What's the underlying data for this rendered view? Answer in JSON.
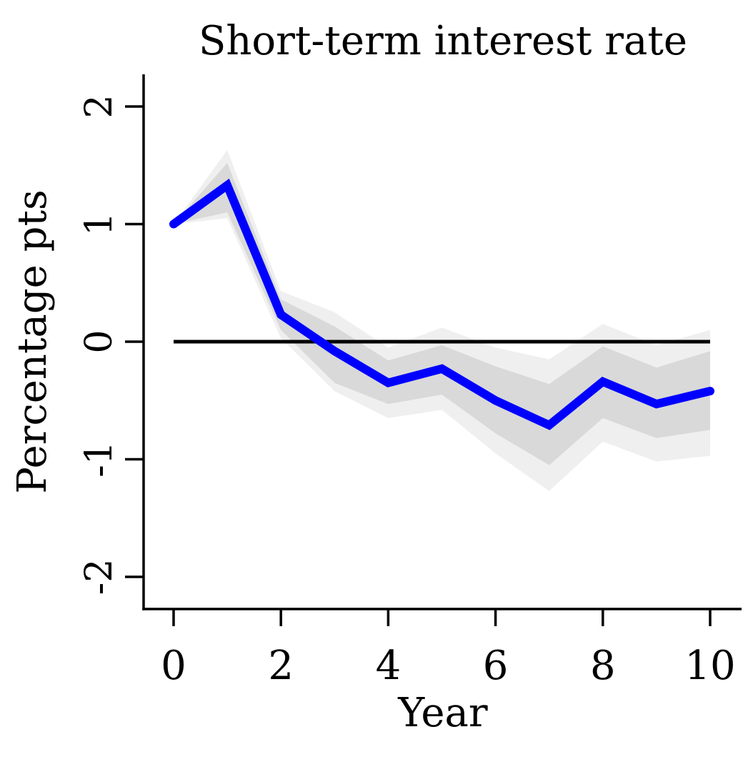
{
  "chart_data": {
    "type": "line",
    "title": "Short-term interest rate",
    "xlabel": "Year",
    "ylabel": "Percentage pts",
    "xlim": [
      -0.55,
      10.55
    ],
    "ylim": [
      -2.22,
      2.27
    ],
    "x_ticks": [
      0,
      2,
      4,
      6,
      8,
      10
    ],
    "x_tick_labels": [
      "0",
      "2",
      "4",
      "6",
      "8",
      "10"
    ],
    "y_ticks": [
      -2,
      -1,
      0,
      1,
      2
    ],
    "y_tick_labels": [
      "-2",
      "-1",
      "0",
      "1",
      "2"
    ],
    "grid": false,
    "x": [
      0,
      1,
      2,
      3,
      4,
      5,
      6,
      7,
      8,
      9,
      10
    ],
    "series": [
      {
        "values": [
          1.0,
          1.33,
          0.23,
          -0.08,
          -0.35,
          -0.23,
          -0.5,
          -0.71,
          -0.34,
          -0.53,
          -0.42
        ],
        "color": "#0000ff"
      }
    ],
    "bands": [
      {
        "level": "outer",
        "color": "#efefef",
        "lower": [
          1.0,
          1.05,
          0.03,
          -0.42,
          -0.65,
          -0.58,
          -0.95,
          -1.27,
          -0.85,
          -1.02,
          -0.97
        ],
        "upper": [
          1.0,
          1.63,
          0.43,
          0.25,
          -0.05,
          0.12,
          -0.05,
          -0.15,
          0.15,
          -0.03,
          0.1
        ]
      },
      {
        "level": "inner",
        "color": "#d9d9d9",
        "lower": [
          1.0,
          1.1,
          0.1,
          -0.35,
          -0.53,
          -0.45,
          -0.78,
          -1.05,
          -0.65,
          -0.82,
          -0.75
        ],
        "upper": [
          1.0,
          1.52,
          0.36,
          0.13,
          -0.16,
          -0.03,
          -0.21,
          -0.36,
          -0.04,
          -0.22,
          -0.08
        ]
      }
    ],
    "reference_line_y": 0
  }
}
